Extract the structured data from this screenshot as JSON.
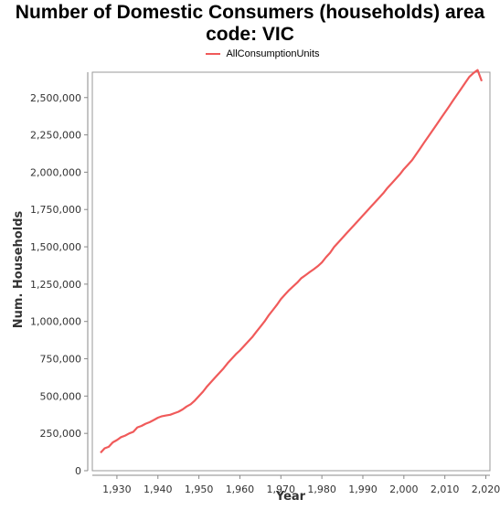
{
  "chart_data": {
    "type": "line",
    "title": "Number of Domestic Consumers (households) area code: VIC",
    "title_lines": [
      "Number of Domestic Consumers (households) area",
      "code: VIC"
    ],
    "xlabel": "Year",
    "ylabel": "Num. Households",
    "xlim": [
      1924,
      2021
    ],
    "ylim": [
      0,
      2670000
    ],
    "x_ticks": [
      1930,
      1940,
      1950,
      1960,
      1970,
      1980,
      1990,
      2000,
      2010,
      2020
    ],
    "x_tick_labels": [
      "1,930",
      "1,940",
      "1,950",
      "1,960",
      "1,970",
      "1,980",
      "1,990",
      "2,000",
      "2,010",
      "2,020"
    ],
    "y_ticks": [
      0,
      250000,
      500000,
      750000,
      1000000,
      1250000,
      1500000,
      1750000,
      2000000,
      2250000,
      2500000
    ],
    "y_tick_labels": [
      "0",
      "250,000",
      "500,000",
      "750,000",
      "1,000,000",
      "1,250,000",
      "1,500,000",
      "1,750,000",
      "2,000,000",
      "2,250,000",
      "2,500,000"
    ],
    "legend_position": "top-center",
    "grid": false,
    "series": [
      {
        "name": "AllConsumptionUnits",
        "color": "#f05a5a",
        "x": [
          1926,
          1927,
          1928,
          1929,
          1930,
          1931,
          1932,
          1933,
          1934,
          1935,
          1936,
          1937,
          1938,
          1939,
          1940,
          1941,
          1942,
          1943,
          1944,
          1945,
          1946,
          1947,
          1948,
          1949,
          1950,
          1951,
          1952,
          1953,
          1954,
          1955,
          1956,
          1957,
          1958,
          1959,
          1960,
          1961,
          1962,
          1963,
          1964,
          1965,
          1966,
          1967,
          1968,
          1969,
          1970,
          1971,
          1972,
          1973,
          1974,
          1975,
          1976,
          1977,
          1978,
          1979,
          1980,
          1981,
          1982,
          1983,
          1984,
          1985,
          1986,
          1987,
          1988,
          1989,
          1990,
          1991,
          1992,
          1993,
          1994,
          1995,
          1996,
          1997,
          1998,
          1999,
          2000,
          2001,
          2002,
          2003,
          2004,
          2005,
          2006,
          2007,
          2008,
          2009,
          2010,
          2011,
          2012,
          2013,
          2014,
          2015,
          2016,
          2017,
          2018,
          2019
        ],
        "values": [
          120000,
          150000,
          160000,
          190000,
          205000,
          225000,
          235000,
          250000,
          260000,
          290000,
          300000,
          315000,
          325000,
          340000,
          355000,
          365000,
          370000,
          375000,
          385000,
          395000,
          410000,
          430000,
          445000,
          470000,
          500000,
          530000,
          565000,
          595000,
          625000,
          655000,
          685000,
          720000,
          750000,
          780000,
          805000,
          835000,
          865000,
          895000,
          930000,
          965000,
          1000000,
          1040000,
          1075000,
          1110000,
          1150000,
          1180000,
          1210000,
          1235000,
          1260000,
          1290000,
          1310000,
          1330000,
          1350000,
          1370000,
          1395000,
          1430000,
          1460000,
          1500000,
          1530000,
          1560000,
          1590000,
          1620000,
          1650000,
          1680000,
          1710000,
          1740000,
          1770000,
          1800000,
          1830000,
          1860000,
          1895000,
          1925000,
          1955000,
          1985000,
          2020000,
          2050000,
          2080000,
          2120000,
          2160000,
          2200000,
          2240000,
          2280000,
          2320000,
          2360000,
          2400000,
          2440000,
          2480000,
          2520000,
          2560000,
          2600000,
          2640000,
          2665000,
          2685000,
          2610000
        ]
      }
    ]
  }
}
